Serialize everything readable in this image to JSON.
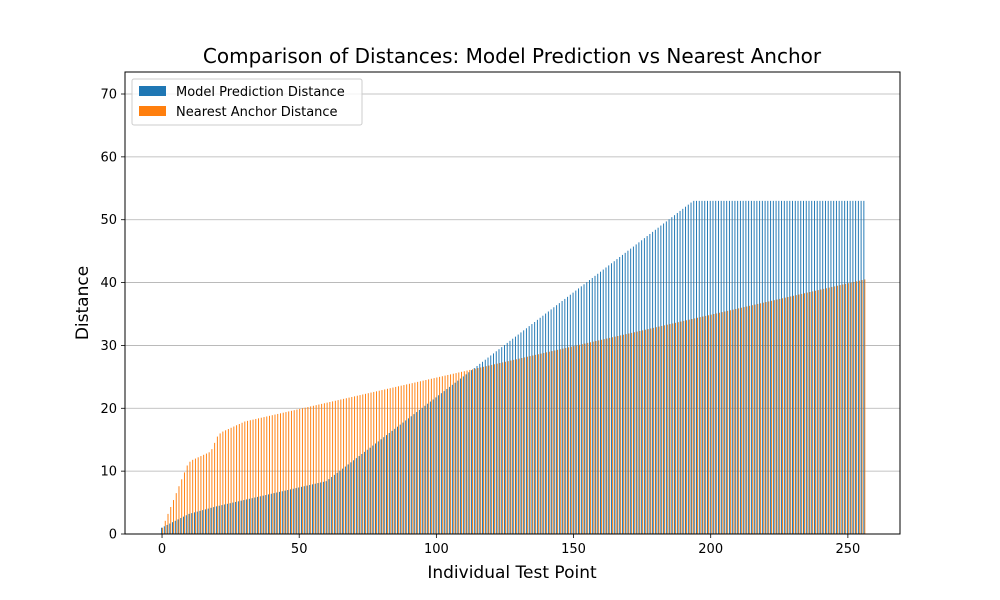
{
  "chart_data": {
    "type": "bar",
    "title": "Comparison of Distances: Model Prediction vs Nearest Anchor",
    "xlabel": "Individual Test Point",
    "ylabel": "Distance",
    "xlim": [
      -13.5,
      269
    ],
    "ylim": [
      0,
      73.5
    ],
    "x_ticks": [
      0,
      50,
      100,
      150,
      200,
      250
    ],
    "y_ticks": [
      0,
      10,
      20,
      30,
      40,
      50,
      60,
      70
    ],
    "grid": "y",
    "legend_position": "top-left",
    "n_points": 257,
    "series": [
      {
        "name": "Model Prediction Distance",
        "color": "#1f77b4",
        "values": [
          1.0,
          1.22,
          1.44,
          1.66,
          1.88,
          2.1,
          2.32,
          2.54,
          2.76,
          2.98,
          3.2,
          3.32,
          3.44,
          3.56,
          3.68,
          3.8,
          3.92,
          4.04,
          4.16,
          4.28,
          4.4,
          4.5,
          4.6,
          4.7,
          4.8,
          4.9,
          5.0,
          5.1,
          5.2,
          5.3,
          5.4,
          5.5,
          5.6,
          5.7,
          5.8,
          5.9,
          6.0,
          6.1,
          6.2,
          6.3,
          6.4,
          6.5,
          6.6,
          6.7,
          6.8,
          6.9,
          7.0,
          7.1,
          7.2,
          7.3,
          7.4,
          7.5,
          7.6,
          7.7,
          7.8,
          7.9,
          8.0,
          8.1,
          8.2,
          8.3,
          8.4,
          8.73,
          9.07,
          9.4,
          9.73,
          10.07,
          10.4,
          10.73,
          11.07,
          11.4,
          11.73,
          12.07,
          12.4,
          12.73,
          13.07,
          13.4,
          13.73,
          14.07,
          14.4,
          14.73,
          15.07,
          15.4,
          15.73,
          16.07,
          16.4,
          16.73,
          17.07,
          17.4,
          17.73,
          18.07,
          18.4,
          18.73,
          19.07,
          19.4,
          19.73,
          20.07,
          20.4,
          20.73,
          21.07,
          21.4,
          21.73,
          22.07,
          22.4,
          22.73,
          23.07,
          23.4,
          23.73,
          24.07,
          24.4,
          24.73,
          25.07,
          25.4,
          25.73,
          26.07,
          26.4,
          26.73,
          27.07,
          27.4,
          27.73,
          28.07,
          28.4,
          28.73,
          29.07,
          29.4,
          29.73,
          30.07,
          30.4,
          30.73,
          31.07,
          31.4,
          31.73,
          32.07,
          32.4,
          32.73,
          33.07,
          33.4,
          33.73,
          34.07,
          34.4,
          34.73,
          35.07,
          35.4,
          35.73,
          36.07,
          36.4,
          36.73,
          37.07,
          37.4,
          37.73,
          38.07,
          38.4,
          38.73,
          39.07,
          39.4,
          39.73,
          40.07,
          40.4,
          40.73,
          41.07,
          41.4,
          41.73,
          42.07,
          42.4,
          42.73,
          43.07,
          43.4,
          43.73,
          44.07,
          44.4,
          44.73,
          45.07,
          45.4,
          45.73,
          46.07,
          46.4,
          46.73,
          47.07,
          47.4,
          47.73,
          48.07,
          48.4,
          48.73,
          49.07,
          49.4,
          49.73,
          50.07,
          50.4,
          50.73,
          51.07,
          51.4,
          51.73,
          52.07,
          52.4,
          52.73,
          53.0,
          53.0,
          53.0,
          53.0,
          53.0,
          53.0,
          53.0,
          53.0,
          53.0,
          53.0,
          53.0,
          53.0,
          53.0,
          53.0,
          53.0,
          53.0,
          53.0,
          53.0,
          53.0,
          53.0,
          53.0,
          53.0,
          53.0,
          53.0,
          53.0,
          53.0,
          53.0,
          53.0,
          53.0,
          53.0,
          53.0,
          53.0,
          53.0,
          53.0,
          53.0,
          53.0,
          53.0,
          53.0,
          53.0,
          53.0,
          53.0,
          53.0,
          53.0,
          53.0,
          53.0,
          53.0,
          53.0,
          53.0,
          53.0,
          53.0,
          53.0,
          53.0,
          53.0,
          53.0,
          53.0,
          53.0,
          53.0,
          53.0,
          53.0,
          53.0,
          53.0,
          53.0,
          53.0,
          53.0,
          53.0,
          53.0
        ]
      },
      {
        "name": "Nearest Anchor Distance",
        "color": "#ff7f0e",
        "values": [
          1.0,
          2.1,
          3.2,
          4.3,
          5.4,
          6.5,
          7.6,
          8.7,
          9.8,
          10.9,
          11.5,
          11.8,
          12.0,
          12.2,
          12.4,
          12.6,
          12.8,
          13.0,
          13.5,
          14.5,
          15.5,
          16.0,
          16.3,
          16.5,
          16.7,
          16.9,
          17.1,
          17.3,
          17.5,
          17.7,
          17.9,
          18.0,
          18.1,
          18.2,
          18.3,
          18.4,
          18.5,
          18.6,
          18.7,
          18.8,
          18.9,
          19.0,
          19.1,
          19.2,
          19.3,
          19.4,
          19.5,
          19.6,
          19.7,
          19.8,
          19.9,
          20.0,
          20.1,
          20.2,
          20.3,
          20.4,
          20.5,
          20.6,
          20.7,
          20.8,
          20.9,
          21.0,
          21.1,
          21.2,
          21.3,
          21.4,
          21.5,
          21.6,
          21.7,
          21.8,
          21.9,
          22.0,
          22.1,
          22.2,
          22.3,
          22.4,
          22.5,
          22.6,
          22.7,
          22.8,
          22.9,
          23.0,
          23.1,
          23.2,
          23.3,
          23.4,
          23.5,
          23.6,
          23.7,
          23.8,
          23.9,
          24.0,
          24.1,
          24.2,
          24.3,
          24.4,
          24.5,
          24.6,
          24.7,
          24.8,
          24.9,
          25.0,
          25.1,
          25.2,
          25.3,
          25.4,
          25.5,
          25.6,
          25.7,
          25.8,
          25.9,
          26.0,
          26.1,
          26.2,
          26.3,
          26.4,
          26.5,
          26.6,
          26.7,
          26.8,
          26.9,
          27.0,
          27.1,
          27.2,
          27.3,
          27.4,
          27.5,
          27.6,
          27.7,
          27.8,
          27.9,
          28.0,
          28.1,
          28.2,
          28.3,
          28.4,
          28.5,
          28.6,
          28.7,
          28.8,
          28.9,
          29.0,
          29.1,
          29.2,
          29.3,
          29.4,
          29.5,
          29.6,
          29.7,
          29.8,
          29.9,
          30.0,
          30.1,
          30.2,
          30.3,
          30.4,
          30.5,
          30.6,
          30.7,
          30.8,
          30.9,
          31.0,
          31.1,
          31.2,
          31.3,
          31.4,
          31.5,
          31.6,
          31.7,
          31.8,
          31.9,
          32.0,
          32.1,
          32.2,
          32.3,
          32.4,
          32.5,
          32.6,
          32.7,
          32.8,
          32.9,
          33.0,
          33.1,
          33.2,
          33.3,
          33.4,
          33.5,
          33.6,
          33.7,
          33.8,
          33.9,
          34.0,
          34.1,
          34.2,
          34.3,
          34.4,
          34.5,
          34.6,
          34.7,
          34.8,
          34.9,
          35.0,
          35.1,
          35.2,
          35.3,
          35.4,
          35.5,
          35.6,
          35.7,
          35.8,
          35.9,
          36.0,
          36.1,
          36.2,
          36.3,
          36.4,
          36.5,
          36.6,
          36.7,
          36.8,
          36.9,
          37.0,
          37.1,
          37.2,
          37.3,
          37.4,
          37.5,
          37.6,
          37.7,
          37.8,
          37.9,
          38.0,
          38.1,
          38.2,
          38.3,
          38.4,
          38.5,
          38.6,
          38.7,
          38.8,
          38.9,
          39.0,
          39.1,
          39.2,
          39.3,
          39.4,
          39.5,
          39.6,
          39.7,
          39.8,
          39.9,
          40.0,
          40.1,
          40.2,
          40.3,
          40.4,
          40.5
        ]
      }
    ]
  }
}
